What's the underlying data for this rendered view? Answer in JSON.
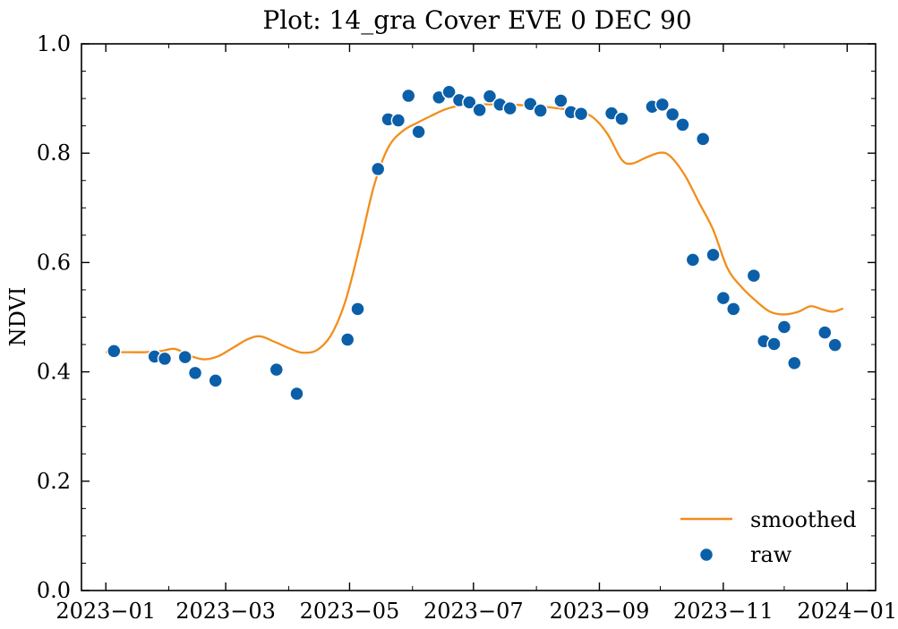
{
  "chart_data": {
    "type": "scatter",
    "title": "Plot: 14_gra Cover EVE 0 DEC 90",
    "xlabel": "",
    "ylabel": "NDVI",
    "xlim": [
      "2022-12-20",
      "2024-01-15"
    ],
    "ylim": [
      0,
      1.0
    ],
    "x_ticks": [
      "2023-01-01",
      "2023-03-01",
      "2023-05-01",
      "2023-07-01",
      "2023-09-01",
      "2023-11-01",
      "2024-01-01"
    ],
    "x_tick_labels": [
      "2023−01",
      "2023−03",
      "2023−05",
      "2023−07",
      "2023−09",
      "2023−11",
      "2024−01"
    ],
    "y_ticks": [
      0.0,
      0.2,
      0.4,
      0.6,
      0.8,
      1.0
    ],
    "y_tick_labels": [
      "0.0",
      "0.2",
      "0.4",
      "0.6",
      "0.8",
      "1.0"
    ],
    "grid": false,
    "legend_position": "bottom-right",
    "series": [
      {
        "name": "smoothed",
        "kind": "line",
        "color": "#f28e1c",
        "points": [
          [
            "2023-01-01",
            0.436
          ],
          [
            "2023-01-10",
            0.436
          ],
          [
            "2023-01-20",
            0.436
          ],
          [
            "2023-01-28",
            0.438
          ],
          [
            "2023-02-04",
            0.442
          ],
          [
            "2023-02-11",
            0.43
          ],
          [
            "2023-02-18",
            0.423
          ],
          [
            "2023-02-25",
            0.428
          ],
          [
            "2023-03-05",
            0.445
          ],
          [
            "2023-03-12",
            0.46
          ],
          [
            "2023-03-18",
            0.465
          ],
          [
            "2023-03-25",
            0.455
          ],
          [
            "2023-04-02",
            0.442
          ],
          [
            "2023-04-08",
            0.435
          ],
          [
            "2023-04-15",
            0.44
          ],
          [
            "2023-04-22",
            0.468
          ],
          [
            "2023-04-29",
            0.53
          ],
          [
            "2023-05-06",
            0.63
          ],
          [
            "2023-05-13",
            0.74
          ],
          [
            "2023-05-20",
            0.81
          ],
          [
            "2023-05-27",
            0.84
          ],
          [
            "2023-06-03",
            0.855
          ],
          [
            "2023-06-10",
            0.868
          ],
          [
            "2023-06-17",
            0.88
          ],
          [
            "2023-06-24",
            0.887
          ],
          [
            "2023-07-01",
            0.889
          ],
          [
            "2023-07-15",
            0.889
          ],
          [
            "2023-07-29",
            0.887
          ],
          [
            "2023-08-12",
            0.882
          ],
          [
            "2023-08-22",
            0.876
          ],
          [
            "2023-08-29",
            0.865
          ],
          [
            "2023-09-05",
            0.835
          ],
          [
            "2023-09-12",
            0.788
          ],
          [
            "2023-09-17",
            0.781
          ],
          [
            "2023-09-24",
            0.792
          ],
          [
            "2023-10-01",
            0.801
          ],
          [
            "2023-10-06",
            0.794
          ],
          [
            "2023-10-13",
            0.76
          ],
          [
            "2023-10-20",
            0.71
          ],
          [
            "2023-10-27",
            0.66
          ],
          [
            "2023-11-03",
            0.59
          ],
          [
            "2023-11-10",
            0.555
          ],
          [
            "2023-11-17",
            0.53
          ],
          [
            "2023-11-24",
            0.51
          ],
          [
            "2023-12-01",
            0.505
          ],
          [
            "2023-12-08",
            0.51
          ],
          [
            "2023-12-14",
            0.52
          ],
          [
            "2023-12-20",
            0.514
          ],
          [
            "2023-12-25",
            0.51
          ],
          [
            "2023-12-30",
            0.516
          ]
        ]
      },
      {
        "name": "raw",
        "kind": "scatter",
        "color": "#0b5fa8",
        "points": [
          [
            "2023-01-05",
            0.438
          ],
          [
            "2023-01-25",
            0.428
          ],
          [
            "2023-01-30",
            0.424
          ],
          [
            "2023-02-09",
            0.427
          ],
          [
            "2023-02-14",
            0.398
          ],
          [
            "2023-02-24",
            0.384
          ],
          [
            "2023-03-26",
            0.404
          ],
          [
            "2023-04-05",
            0.36
          ],
          [
            "2023-04-30",
            0.459
          ],
          [
            "2023-05-05",
            0.515
          ],
          [
            "2023-05-15",
            0.771
          ],
          [
            "2023-05-20",
            0.862
          ],
          [
            "2023-05-25",
            0.86
          ],
          [
            "2023-05-30",
            0.905
          ],
          [
            "2023-06-04",
            0.839
          ],
          [
            "2023-06-14",
            0.902
          ],
          [
            "2023-06-19",
            0.912
          ],
          [
            "2023-06-24",
            0.897
          ],
          [
            "2023-06-29",
            0.893
          ],
          [
            "2023-07-04",
            0.879
          ],
          [
            "2023-07-09",
            0.904
          ],
          [
            "2023-07-14",
            0.889
          ],
          [
            "2023-07-19",
            0.882
          ],
          [
            "2023-07-29",
            0.89
          ],
          [
            "2023-08-03",
            0.878
          ],
          [
            "2023-08-13",
            0.896
          ],
          [
            "2023-08-18",
            0.875
          ],
          [
            "2023-08-23",
            0.872
          ],
          [
            "2023-09-07",
            0.873
          ],
          [
            "2023-09-12",
            0.863
          ],
          [
            "2023-09-27",
            0.885
          ],
          [
            "2023-10-02",
            0.889
          ],
          [
            "2023-10-07",
            0.871
          ],
          [
            "2023-10-12",
            0.852
          ],
          [
            "2023-10-17",
            0.605
          ],
          [
            "2023-10-22",
            0.826
          ],
          [
            "2023-10-27",
            0.614
          ],
          [
            "2023-11-01",
            0.535
          ],
          [
            "2023-11-06",
            0.515
          ],
          [
            "2023-11-16",
            0.576
          ],
          [
            "2023-11-21",
            0.456
          ],
          [
            "2023-11-26",
            0.451
          ],
          [
            "2023-12-01",
            0.482
          ],
          [
            "2023-12-06",
            0.416
          ],
          [
            "2023-12-21",
            0.472
          ],
          [
            "2023-12-26",
            0.449
          ]
        ]
      }
    ]
  }
}
